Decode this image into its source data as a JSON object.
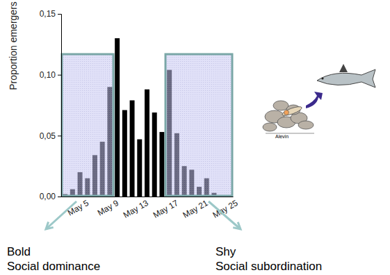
{
  "chart_data": {
    "type": "bar",
    "y_label": "Proportion emergers",
    "categories": [
      null,
      null,
      "May 5",
      null,
      null,
      null,
      "May 9",
      null,
      null,
      null,
      "May 13",
      null,
      null,
      null,
      "May 17",
      null,
      null,
      null,
      "May 21",
      null,
      null,
      null,
      "May 25"
    ],
    "values": [
      0.002,
      0.006,
      0.02,
      0.015,
      0.034,
      0.045,
      0.09,
      0.13,
      0.071,
      0.079,
      0.047,
      0.088,
      0.069,
      0.053,
      0.104,
      0.052,
      0.025,
      0.022,
      0.008,
      0.015,
      0.003,
      0,
      0
    ],
    "color": "#000000",
    "ylim": [
      0,
      0.15
    ],
    "yticks": [
      {
        "value": 0,
        "label": "0,00"
      },
      {
        "value": 0.05,
        "label": "0,05"
      },
      {
        "value": 0.1,
        "label": "0,10"
      },
      {
        "value": 0.15,
        "label": "0,15"
      }
    ],
    "grid": false,
    "annotations": [
      "Bold",
      "Social dominance",
      "Shy",
      "Social subordination",
      "Alevin"
    ]
  }
}
